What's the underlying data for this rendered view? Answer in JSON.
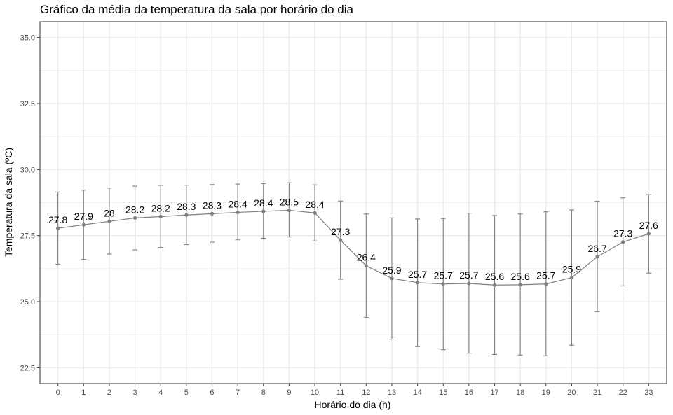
{
  "chart_data": {
    "type": "line",
    "title": "Gráfico da média da temperatura da sala por horário do dia",
    "xlabel": "Horário do dia (h)",
    "ylabel": "Temperatura da sala (ºC)",
    "x": [
      0,
      1,
      2,
      3,
      4,
      5,
      6,
      7,
      8,
      9,
      10,
      11,
      12,
      13,
      14,
      15,
      16,
      17,
      18,
      19,
      20,
      21,
      22,
      23
    ],
    "x_tick_labels": [
      "0",
      "1",
      "2",
      "3",
      "4",
      "5",
      "6",
      "7",
      "8",
      "9",
      "10",
      "11",
      "12",
      "13",
      "14",
      "15",
      "16",
      "17",
      "18",
      "19",
      "20",
      "21",
      "22",
      "23"
    ],
    "y": [
      27.78,
      27.91,
      28.04,
      28.17,
      28.22,
      28.28,
      28.33,
      28.38,
      28.42,
      28.46,
      28.36,
      27.33,
      26.36,
      25.88,
      25.72,
      25.67,
      25.69,
      25.63,
      25.64,
      25.67,
      25.91,
      26.7,
      27.26,
      27.57
    ],
    "data_labels": [
      "27.8",
      "27.9",
      "28",
      "28.2",
      "28.2",
      "28.3",
      "28.3",
      "28.4",
      "28.4",
      "28.5",
      "28.4",
      "27.3",
      "26.4",
      "25.9",
      "25.7",
      "25.7",
      "25.7",
      "25.6",
      "25.6",
      "25.7",
      "25.9",
      "26.7",
      "27.3",
      "27.6"
    ],
    "error_lower": [
      26.42,
      26.6,
      26.8,
      26.96,
      27.05,
      27.16,
      27.25,
      27.34,
      27.4,
      27.45,
      27.3,
      25.85,
      24.4,
      23.58,
      23.3,
      23.18,
      23.05,
      23.0,
      22.98,
      22.95,
      23.35,
      24.62,
      25.6,
      26.08
    ],
    "error_upper": [
      29.15,
      29.22,
      29.3,
      29.37,
      29.4,
      29.41,
      29.43,
      29.45,
      29.47,
      29.5,
      29.42,
      28.81,
      28.32,
      28.17,
      28.13,
      28.15,
      28.35,
      28.26,
      28.32,
      28.4,
      28.47,
      28.8,
      28.93,
      29.05
    ],
    "y_ticks": [
      22.5,
      25.0,
      27.5,
      30.0,
      32.5,
      35.0
    ],
    "y_tick_labels": [
      "22.5",
      "25.0",
      "27.5",
      "30.0",
      "32.5",
      "35.0"
    ],
    "xlim": [
      -0.7,
      23.7
    ],
    "ylim": [
      21.9,
      35.6
    ],
    "grid": true,
    "colors": {
      "line": "#808080",
      "point": "#808080",
      "errorbar": "#808080",
      "grid": "#ebebeb",
      "panel_border": "#333333"
    }
  }
}
